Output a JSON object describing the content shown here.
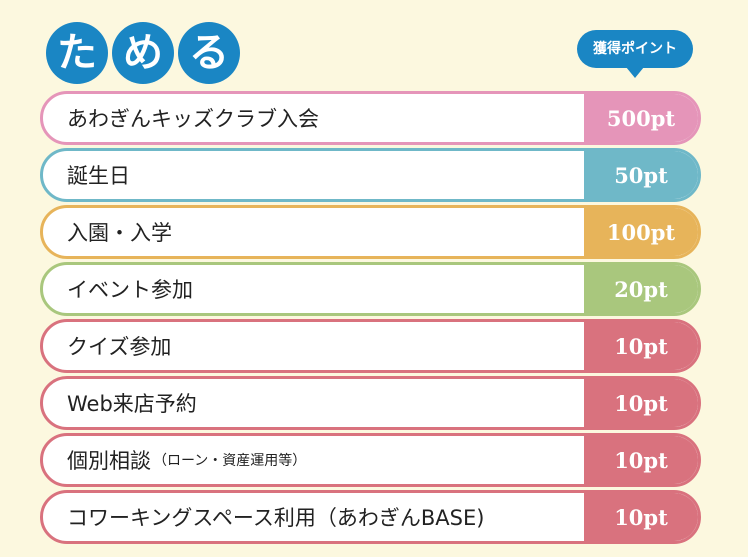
{
  "title": {
    "chars": [
      "た",
      "め",
      "る"
    ]
  },
  "points_header": "獲得ポイント",
  "colors": {
    "title_blue": "#1a86c4",
    "background": "#fcf8df",
    "pink": "#e595b9",
    "teal": "#6fb8c8",
    "orange": "#e7b45a",
    "green": "#a9c77d",
    "red": "#d9727e"
  },
  "items": [
    {
      "label": "あわぎんキッズクラブ入会",
      "note": "",
      "points": "500pt",
      "color": "#e595b9"
    },
    {
      "label": "誕生日",
      "note": "",
      "points": "50pt",
      "color": "#6fb8c8"
    },
    {
      "label": "入園・入学",
      "note": "",
      "points": "100pt",
      "color": "#e7b45a"
    },
    {
      "label": "イベント参加",
      "note": "",
      "points": "20pt",
      "color": "#a9c77d"
    },
    {
      "label": "クイズ参加",
      "note": "",
      "points": "10pt",
      "color": "#d9727e"
    },
    {
      "label": "Web来店予約",
      "note": "",
      "points": "10pt",
      "color": "#d9727e"
    },
    {
      "label": "個別相談",
      "note": "（ローン・資産運用等）",
      "points": "10pt",
      "color": "#d9727e"
    },
    {
      "label": "コワーキングスペース利用（あわぎんBASE)",
      "note": "",
      "points": "10pt",
      "color": "#d9727e"
    }
  ]
}
